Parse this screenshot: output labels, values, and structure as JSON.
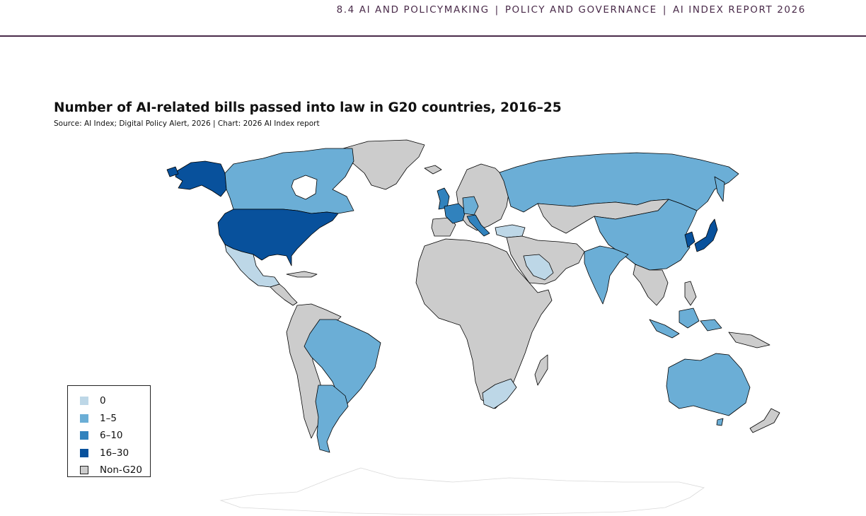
{
  "header": {
    "section": "8.4 AI AND POLICYMAKING",
    "chapter": "POLICY AND GOVERNANCE",
    "report": "AI INDEX REPORT 2026",
    "separator": "|"
  },
  "chart_data": {
    "type": "choropleth",
    "title": "Number of AI-related bills passed into law in G20 countries, 2016–25",
    "source": "Source: AI Index; Digital Policy Alert, 2026 | Chart: 2026 AI Index report",
    "legend_placement": "bottom-left",
    "colors": {
      "0": "#bdd7e7",
      "1–5": "#6baed6",
      "6–10": "#3182bd",
      "16–30": "#08519c",
      "Non-G20": "#cccccc",
      "border": "#000000"
    },
    "legend": [
      {
        "label": "0",
        "color": "#bdd7e7"
      },
      {
        "label": "1–5",
        "color": "#6baed6"
      },
      {
        "label": "6–10",
        "color": "#3182bd"
      },
      {
        "label": "16–30",
        "color": "#08519c"
      },
      {
        "label": "Non-G20",
        "color": "#cccccc"
      }
    ],
    "countries": [
      {
        "name": "United States",
        "category": "16–30"
      },
      {
        "name": "Canada",
        "category": "1–5"
      },
      {
        "name": "Mexico",
        "category": "0"
      },
      {
        "name": "Brazil",
        "category": "1–5"
      },
      {
        "name": "Argentina",
        "category": "1–5"
      },
      {
        "name": "United Kingdom",
        "category": "6–10"
      },
      {
        "name": "France",
        "category": "6–10"
      },
      {
        "name": "Germany",
        "category": "1–5"
      },
      {
        "name": "Italy",
        "category": "6–10"
      },
      {
        "name": "Russia",
        "category": "1–5"
      },
      {
        "name": "Turkey",
        "category": "0"
      },
      {
        "name": "Saudi Arabia",
        "category": "0"
      },
      {
        "name": "South Africa",
        "category": "0"
      },
      {
        "name": "India",
        "category": "1–5"
      },
      {
        "name": "China",
        "category": "1–5"
      },
      {
        "name": "Japan",
        "category": "16–30"
      },
      {
        "name": "South Korea",
        "category": "16–30"
      },
      {
        "name": "Indonesia",
        "category": "1–5"
      },
      {
        "name": "Australia",
        "category": "1–5"
      }
    ]
  }
}
